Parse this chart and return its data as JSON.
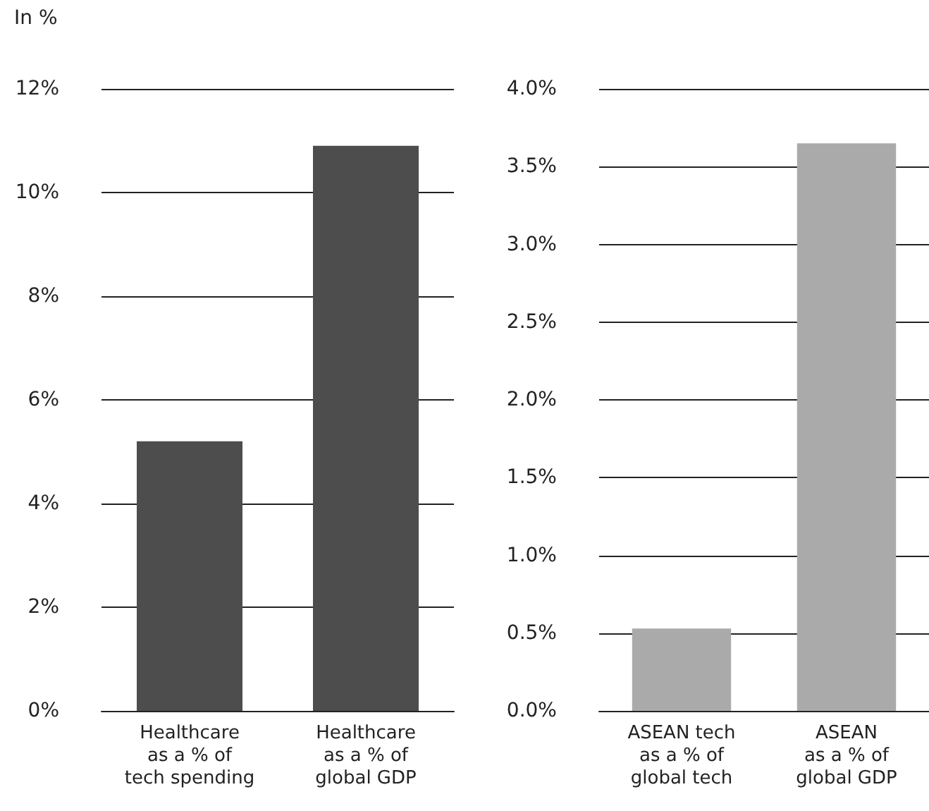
{
  "chart_data": [
    {
      "type": "bar",
      "ylabel": "In %",
      "categories": [
        "Healthcare\nas a % of\ntech spending",
        "Healthcare\nas a % of\nglobal GDP"
      ],
      "values": [
        5.2,
        10.9
      ],
      "color": "#4d4d4d",
      "ylim": [
        0,
        12
      ],
      "yticks": [
        {
          "value": 0,
          "label": "0%"
        },
        {
          "value": 2,
          "label": "2%"
        },
        {
          "value": 4,
          "label": "4%"
        },
        {
          "value": 6,
          "label": "6%"
        },
        {
          "value": 8,
          "label": "8%"
        },
        {
          "value": 10,
          "label": "10%"
        },
        {
          "value": 12,
          "label": "12%"
        }
      ],
      "grid": "y"
    },
    {
      "type": "bar",
      "categories": [
        "ASEAN tech\nas a % of\nglobal tech",
        "ASEAN\nas a % of\nglobal GDP"
      ],
      "values": [
        0.53,
        3.65
      ],
      "color": "#aaaaab",
      "ylim": [
        0,
        4
      ],
      "yticks": [
        {
          "value": 0,
          "label": "0.0%"
        },
        {
          "value": 0.5,
          "label": "0.5%"
        },
        {
          "value": 1,
          "label": "1.0%"
        },
        {
          "value": 1.5,
          "label": "1.5%"
        },
        {
          "value": 2,
          "label": "2.0%"
        },
        {
          "value": 2.5,
          "label": "2.5%"
        },
        {
          "value": 3,
          "label": "3.0%"
        },
        {
          "value": 3.5,
          "label": "3.5%"
        },
        {
          "value": 4,
          "label": "4.0%"
        }
      ],
      "grid": "y"
    }
  ]
}
